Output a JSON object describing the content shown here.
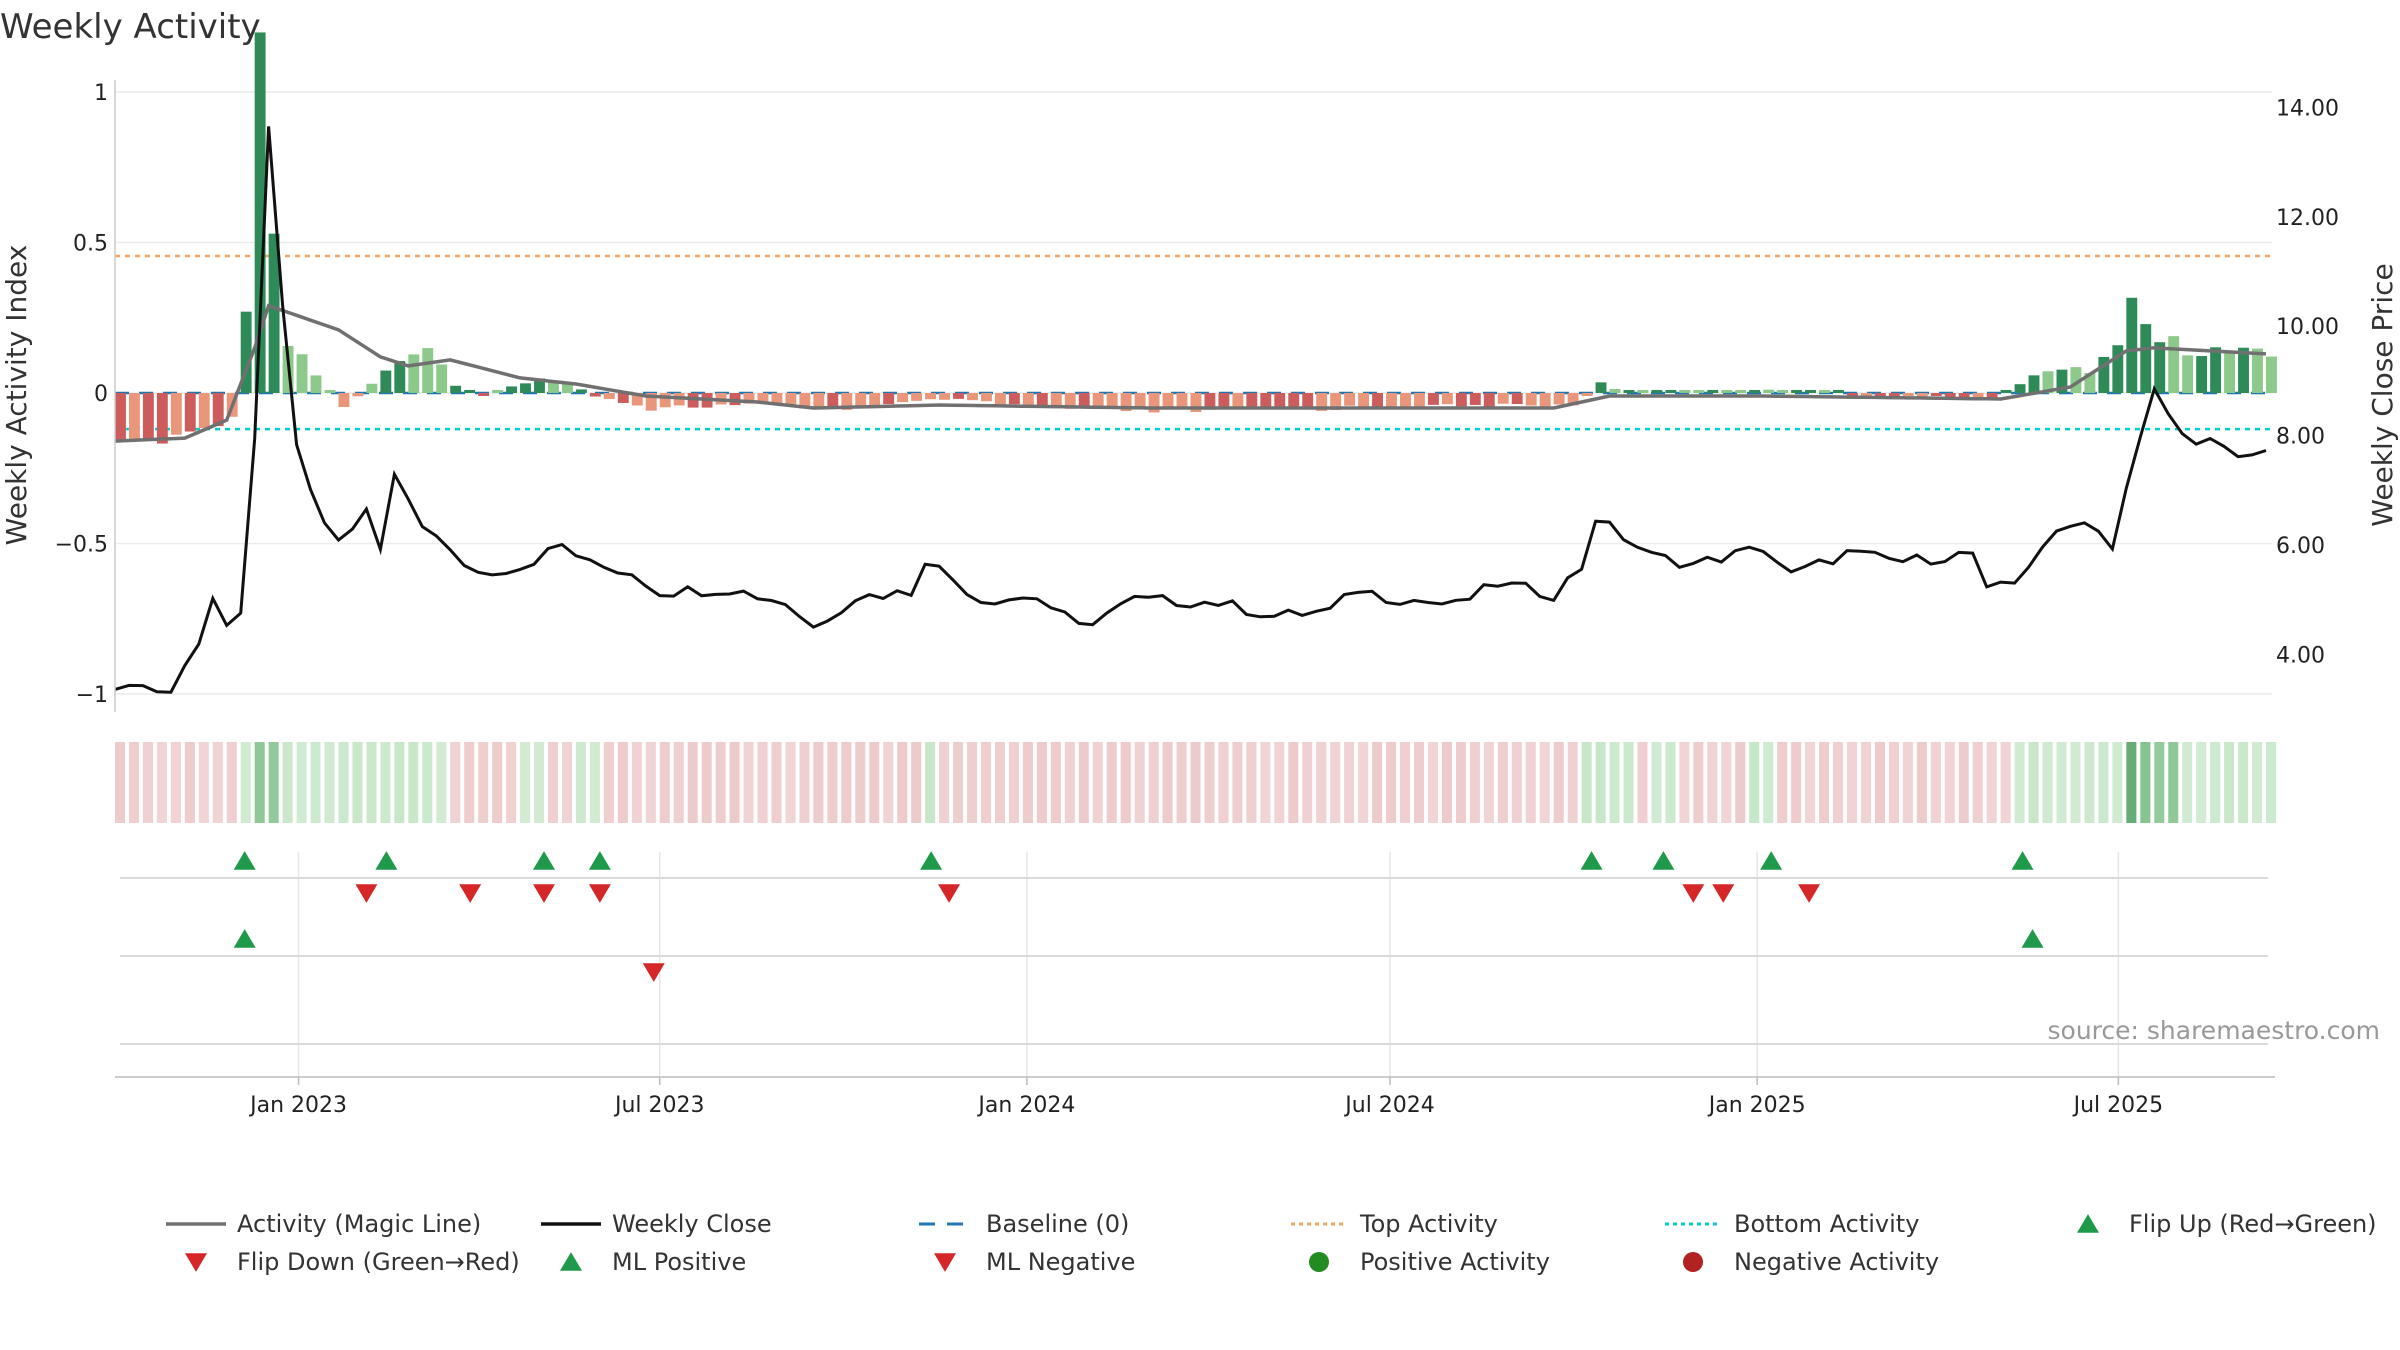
{
  "chart_data": {
    "type": "bar+line",
    "title": "Weekly Activity",
    "ylabel_left": "Weekly Activity Index",
    "ylabel_right": "Weekly Close Price",
    "source": "source: sharemaestro.com",
    "x_start": "2022-10-01",
    "x_end": "2025-09-16",
    "ylim_left": [
      -1.06,
      1.04
    ],
    "ylim_right": [
      2.95,
      14.5
    ],
    "left_ticks": [
      {
        "v": 1,
        "label": "1"
      },
      {
        "v": 0.5,
        "label": "0.5"
      },
      {
        "v": 0,
        "label": "0"
      },
      {
        "v": -0.5,
        "label": "−0.5"
      },
      {
        "v": -1,
        "label": "−1"
      }
    ],
    "right_ticks": [
      {
        "v": 14,
        "label": "14.00"
      },
      {
        "v": 12,
        "label": "12.00"
      },
      {
        "v": 10,
        "label": "10.00"
      },
      {
        "v": 8,
        "label": "8.00"
      },
      {
        "v": 6,
        "label": "6.00"
      },
      {
        "v": 4,
        "label": "4.00"
      }
    ],
    "x_ticks": [
      {
        "date": "2023-01-01",
        "label": "Jan 2023"
      },
      {
        "date": "2023-07-01",
        "label": "Jul 2023"
      },
      {
        "date": "2024-01-01",
        "label": "Jan 2024"
      },
      {
        "date": "2024-07-01",
        "label": "Jul 2024"
      },
      {
        "date": "2025-01-01",
        "label": "Jan 2025"
      },
      {
        "date": "2025-07-01",
        "label": "Jul 2025"
      }
    ],
    "top_activity": 0.455,
    "bottom_activity": -0.12,
    "activity_keys": [
      [
        "2022-10-01",
        -0.16
      ],
      [
        "2022-10-29",
        -0.16
      ],
      [
        "2022-11-26",
        -0.07
      ],
      [
        "2022-12-03",
        0.31
      ],
      [
        "2022-12-10",
        1.0
      ],
      [
        "2022-12-17",
        0.47
      ],
      [
        "2022-12-24",
        0.16
      ],
      [
        "2023-01-07",
        0.06
      ],
      [
        "2023-01-21",
        -0.05
      ],
      [
        "2023-02-11",
        0.07
      ],
      [
        "2023-02-25",
        0.15
      ],
      [
        "2023-03-04",
        0.16
      ],
      [
        "2023-03-18",
        0.03
      ],
      [
        "2023-04-01",
        -0.01
      ],
      [
        "2023-04-29",
        0.05
      ],
      [
        "2023-05-13",
        0.03
      ],
      [
        "2023-05-27",
        -0.01
      ],
      [
        "2023-06-24",
        -0.05
      ],
      [
        "2023-08-05",
        -0.04
      ],
      [
        "2023-10-07",
        -0.05
      ],
      [
        "2023-11-18",
        -0.02
      ],
      [
        "2024-01-06",
        -0.05
      ],
      [
        "2024-03-02",
        -0.06
      ],
      [
        "2024-06-01",
        -0.05
      ],
      [
        "2024-09-28",
        -0.04
      ],
      [
        "2024-10-12",
        0.03
      ],
      [
        "2024-10-26",
        0.0
      ],
      [
        "2025-01-04",
        0.01
      ],
      [
        "2025-04-26",
        -0.02
      ],
      [
        "2025-05-17",
        0.06
      ],
      [
        "2025-06-14",
        0.08
      ],
      [
        "2025-06-28",
        0.14
      ],
      [
        "2025-07-05",
        0.27
      ],
      [
        "2025-07-19",
        0.17
      ],
      [
        "2025-08-16",
        0.14
      ],
      [
        "2025-09-13",
        0.12
      ]
    ],
    "magic_keys": [
      [
        "2022-10-01",
        -0.16
      ],
      [
        "2022-11-05",
        -0.15
      ],
      [
        "2022-11-26",
        -0.09
      ],
      [
        "2022-12-10",
        0.15
      ],
      [
        "2022-12-17",
        0.29
      ],
      [
        "2023-01-21",
        0.21
      ],
      [
        "2023-02-11",
        0.12
      ],
      [
        "2023-02-25",
        0.09
      ],
      [
        "2023-03-18",
        0.11
      ],
      [
        "2023-04-22",
        0.05
      ],
      [
        "2023-05-20",
        0.03
      ],
      [
        "2023-06-24",
        -0.01
      ],
      [
        "2023-08-19",
        -0.03
      ],
      [
        "2023-09-16",
        -0.05
      ],
      [
        "2023-11-18",
        -0.04
      ],
      [
        "2024-03-02",
        -0.05
      ],
      [
        "2024-06-01",
        -0.05
      ],
      [
        "2024-09-21",
        -0.05
      ],
      [
        "2024-10-19",
        -0.01
      ],
      [
        "2025-01-04",
        -0.01
      ],
      [
        "2025-05-03",
        -0.02
      ],
      [
        "2025-06-07",
        0.02
      ],
      [
        "2025-07-05",
        0.14
      ],
      [
        "2025-07-19",
        0.15
      ],
      [
        "2025-09-13",
        0.13
      ]
    ],
    "close_keys": [
      [
        "2022-10-01",
        3.35
      ],
      [
        "2022-10-15",
        3.45
      ],
      [
        "2022-10-29",
        3.35
      ],
      [
        "2022-11-05",
        3.8
      ],
      [
        "2022-11-12",
        4.3
      ],
      [
        "2022-11-19",
        5.1
      ],
      [
        "2022-11-26",
        4.55
      ],
      [
        "2022-12-03",
        4.65
      ],
      [
        "2022-12-10",
        7.9
      ],
      [
        "2022-12-17",
        13.7
      ],
      [
        "2022-12-24",
        10.4
      ],
      [
        "2022-12-31",
        7.9
      ],
      [
        "2023-01-07",
        7.0
      ],
      [
        "2023-01-14",
        6.3
      ],
      [
        "2023-01-21",
        6.0
      ],
      [
        "2023-02-04",
        6.6
      ],
      [
        "2023-02-11",
        5.9
      ],
      [
        "2023-02-18",
        7.2
      ],
      [
        "2023-02-25",
        6.85
      ],
      [
        "2023-03-04",
        6.4
      ],
      [
        "2023-03-18",
        5.85
      ],
      [
        "2023-04-01",
        5.5
      ],
      [
        "2023-04-22",
        5.6
      ],
      [
        "2023-05-13",
        6.0
      ],
      [
        "2023-05-27",
        5.65
      ],
      [
        "2023-06-17",
        5.5
      ],
      [
        "2023-07-01",
        5.15
      ],
      [
        "2023-08-05",
        5.2
      ],
      [
        "2023-09-02",
        4.95
      ],
      [
        "2023-09-16",
        4.5
      ],
      [
        "2023-10-07",
        5.05
      ],
      [
        "2023-11-04",
        5.15
      ],
      [
        "2023-11-11",
        5.75
      ],
      [
        "2023-12-09",
        5.0
      ],
      [
        "2024-01-06",
        5.05
      ],
      [
        "2024-01-27",
        4.5
      ],
      [
        "2024-02-24",
        5.0
      ],
      [
        "2024-04-06",
        4.95
      ],
      [
        "2024-05-04",
        4.7
      ],
      [
        "2024-06-01",
        4.8
      ],
      [
        "2024-06-15",
        5.2
      ],
      [
        "2024-06-29",
        5.05
      ],
      [
        "2024-08-03",
        4.9
      ],
      [
        "2024-08-24",
        5.3
      ],
      [
        "2024-09-21",
        5.1
      ],
      [
        "2024-10-05",
        5.6
      ],
      [
        "2024-10-12",
        6.5
      ],
      [
        "2024-10-26",
        6.15
      ],
      [
        "2024-11-09",
        5.8
      ],
      [
        "2024-11-30",
        5.65
      ],
      [
        "2025-01-04",
        5.95
      ],
      [
        "2025-01-18",
        5.45
      ],
      [
        "2025-02-15",
        5.85
      ],
      [
        "2025-03-15",
        5.7
      ],
      [
        "2025-04-19",
        5.85
      ],
      [
        "2025-04-26",
        5.15
      ],
      [
        "2025-05-10",
        5.3
      ],
      [
        "2025-05-24",
        6.0
      ],
      [
        "2025-06-14",
        6.5
      ],
      [
        "2025-06-28",
        6.0
      ],
      [
        "2025-07-05",
        7.05
      ],
      [
        "2025-07-19",
        8.8
      ],
      [
        "2025-08-02",
        8.0
      ],
      [
        "2025-08-16",
        7.9
      ],
      [
        "2025-08-30",
        7.55
      ],
      [
        "2025-09-06",
        7.65
      ],
      [
        "2025-09-13",
        7.7
      ]
    ],
    "regimes": [
      [
        "2022-10-01",
        "2022-12-03",
        "neg"
      ],
      [
        "2022-12-03",
        "2022-12-10",
        "pos"
      ],
      [
        "2022-12-10",
        "2022-12-24",
        "pos2"
      ],
      [
        "2022-12-24",
        "2023-02-11",
        "pos"
      ],
      [
        "2023-02-11",
        "2023-03-18",
        "pos"
      ],
      [
        "2023-03-18",
        "2023-04-22",
        "neg"
      ],
      [
        "2023-04-22",
        "2023-05-06",
        "pos"
      ],
      [
        "2023-05-06",
        "2023-05-20",
        "neg"
      ],
      [
        "2023-05-20",
        "2023-06-03",
        "pos"
      ],
      [
        "2023-06-03",
        "2023-11-11",
        "neg"
      ],
      [
        "2023-11-11",
        "2023-11-18",
        "pos"
      ],
      [
        "2023-11-18",
        "2024-10-05",
        "neg"
      ],
      [
        "2024-10-05",
        "2024-11-02",
        "pos"
      ],
      [
        "2024-11-02",
        "2024-11-09",
        "neg"
      ],
      [
        "2024-11-09",
        "2024-11-23",
        "pos"
      ],
      [
        "2024-11-23",
        "2024-12-28",
        "neg"
      ],
      [
        "2024-12-28",
        "2025-01-11",
        "pos"
      ],
      [
        "2025-01-11",
        "2025-05-10",
        "neg"
      ],
      [
        "2025-05-10",
        "2025-07-05",
        "pos"
      ],
      [
        "2025-07-05",
        "2025-08-02",
        "pos2"
      ],
      [
        "2025-08-02",
        "2025-09-16",
        "pos"
      ]
    ],
    "flip_up": [
      "2022-12-05",
      "2023-02-14",
      "2023-05-04",
      "2023-06-01",
      "2023-11-14",
      "2024-10-10",
      "2024-11-15",
      "2025-01-08",
      "2025-05-14"
    ],
    "flip_down": [
      "2023-02-04",
      "2023-03-28",
      "2023-05-04",
      "2023-06-01",
      "2023-11-23",
      "2024-11-30",
      "2024-12-15",
      "2025-01-27"
    ],
    "ml_positive": [
      "2022-12-05",
      "2025-05-19"
    ],
    "ml_negative": [
      "2023-06-28"
    ],
    "colors": {
      "pos_strong": "#2e8b57",
      "pos_light": "#8cc98a",
      "neg_strong": "#cd5c5c",
      "neg_light": "#e9967a",
      "baseline": "#1f77b4",
      "magic": "#707070",
      "close": "#111111",
      "top": "#f4a460",
      "bottom": "#00ced1",
      "up_marker": "#1e9a4a",
      "down_marker": "#d62728",
      "pos_dot": "#228b22",
      "neg_dot": "#b22222"
    },
    "legend": [
      {
        "label": "Activity (Magic Line)",
        "kind": "line",
        "color": "#707070"
      },
      {
        "label": "Weekly Close",
        "kind": "line",
        "color": "#111111"
      },
      {
        "label": "Baseline (0)",
        "kind": "dash",
        "color": "#1f77b4"
      },
      {
        "label": "Top Activity",
        "kind": "dot",
        "color": "#f4a460"
      },
      {
        "label": "Bottom Activity",
        "kind": "dot",
        "color": "#00ced1"
      },
      {
        "label": "Flip Up (Red→Green)",
        "kind": "up",
        "color": "#1e9a4a"
      },
      {
        "label": "Flip Down (Green→Red)",
        "kind": "down",
        "color": "#d62728"
      },
      {
        "label": "ML Positive",
        "kind": "up",
        "color": "#1e9a4a"
      },
      {
        "label": "ML Negative",
        "kind": "down",
        "color": "#d62728"
      },
      {
        "label": "Positive Activity",
        "kind": "circle",
        "color": "#228b22"
      },
      {
        "label": "Negative Activity",
        "kind": "circle",
        "color": "#b22222"
      }
    ]
  }
}
